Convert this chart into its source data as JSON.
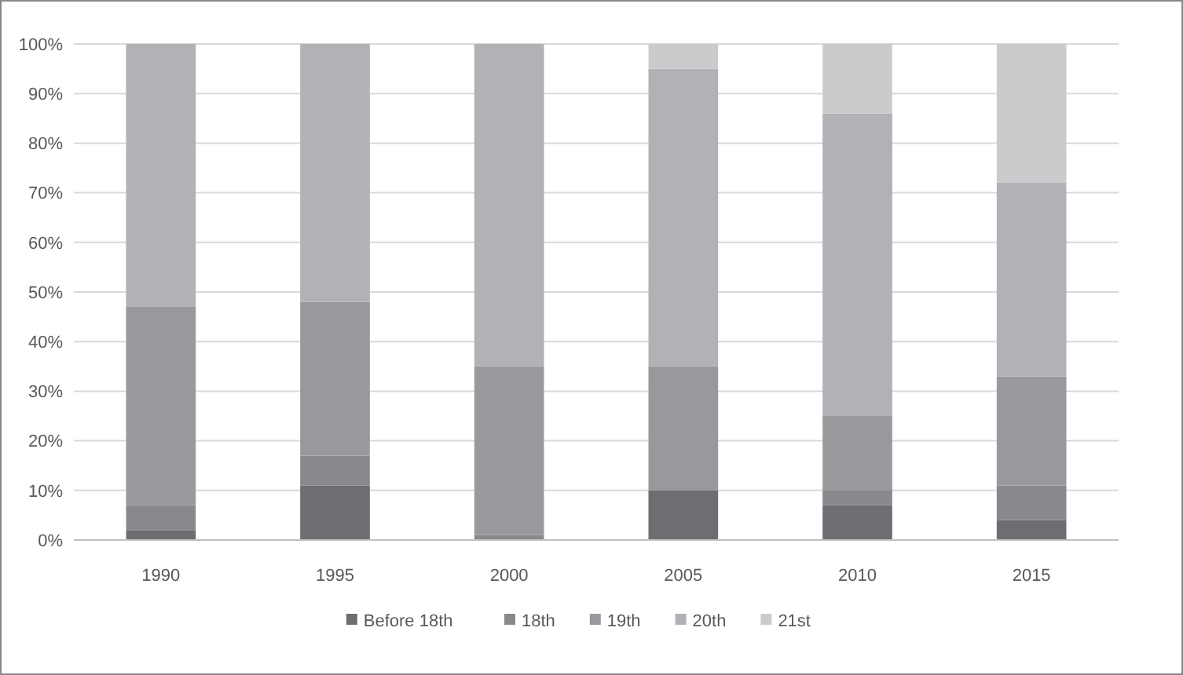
{
  "chart_data": {
    "type": "bar",
    "stacked": true,
    "categories": [
      "1990",
      "1995",
      "2000",
      "2005",
      "2010",
      "2015"
    ],
    "series": [
      {
        "name": "Before 18th",
        "color": "#6d6e71",
        "values": [
          2,
          11,
          0,
          10,
          7,
          4
        ]
      },
      {
        "name": "18th",
        "color": "#88898c",
        "values": [
          5,
          6,
          1,
          0,
          3,
          7
        ]
      },
      {
        "name": "19th",
        "color": "#98999c",
        "values": [
          40,
          31,
          34,
          25,
          15,
          22
        ]
      },
      {
        "name": "20th",
        "color": "#b1b2b5",
        "values": [
          53,
          52,
          65,
          60,
          61,
          39
        ]
      },
      {
        "name": "21st",
        "color": "#cacbcd",
        "values": [
          0,
          0,
          0,
          5,
          14,
          28
        ]
      }
    ],
    "ylim": [
      0,
      100
    ],
    "yticks": [
      {
        "value": 0,
        "label": "0%"
      },
      {
        "value": 10,
        "label": "10%"
      },
      {
        "value": 20,
        "label": "20%"
      },
      {
        "value": 30,
        "label": "30%"
      },
      {
        "value": 40,
        "label": "40%"
      },
      {
        "value": 50,
        "label": "50%"
      },
      {
        "value": 60,
        "label": "60%"
      },
      {
        "value": 70,
        "label": "70%"
      },
      {
        "value": 80,
        "label": "80%"
      },
      {
        "value": 90,
        "label": "90%"
      },
      {
        "value": 100,
        "label": "100%"
      }
    ],
    "grid": "y",
    "legend": "bottom"
  }
}
